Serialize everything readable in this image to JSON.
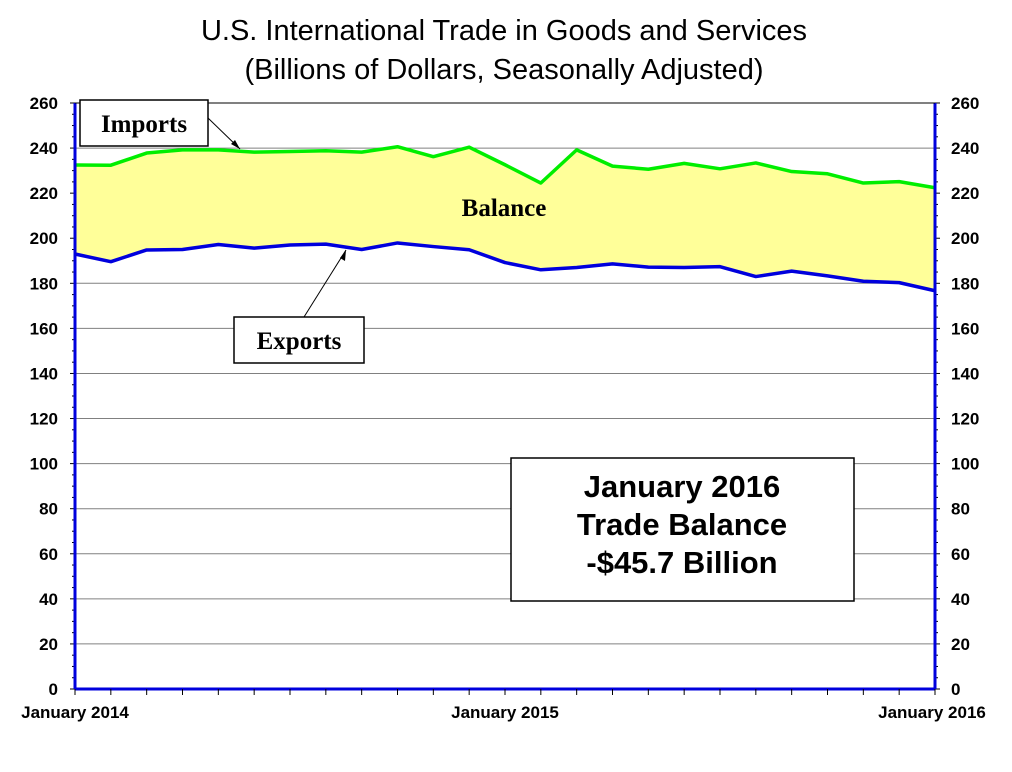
{
  "chart_data": {
    "type": "area",
    "title": "U.S. International Trade in Goods and Services",
    "subtitle": "(Billions of Dollars, Seasonally Adjusted)",
    "x_tick_labels": [
      "January 2014",
      "January 2015",
      "January 2016"
    ],
    "x": [
      "2014-01",
      "2014-02",
      "2014-03",
      "2014-04",
      "2014-05",
      "2014-06",
      "2014-07",
      "2014-08",
      "2014-09",
      "2014-10",
      "2014-11",
      "2014-12",
      "2015-01",
      "2015-02",
      "2015-03",
      "2015-04",
      "2015-05",
      "2015-06",
      "2015-07",
      "2015-08",
      "2015-09",
      "2015-10",
      "2015-11",
      "2015-12",
      "2016-01"
    ],
    "series": [
      {
        "name": "Imports",
        "color": "#00ee00",
        "values": [
          232.5,
          232.4,
          237.8,
          239.2,
          239.2,
          238.2,
          238.5,
          238.8,
          238.2,
          240.6,
          236.2,
          240.4,
          232.6,
          224.5,
          239.2,
          232.0,
          230.6,
          233.2,
          230.8,
          233.4,
          229.6,
          228.6,
          224.5,
          225.1,
          222.4
        ]
      },
      {
        "name": "Exports",
        "color": "#0000dd",
        "values": [
          193.0,
          189.6,
          194.8,
          195.0,
          197.2,
          195.6,
          197.0,
          197.4,
          195.0,
          197.9,
          196.3,
          194.9,
          189.2,
          186.0,
          187.0,
          188.6,
          187.2,
          187.0,
          187.4,
          183.0,
          185.4,
          183.3,
          180.9,
          180.3,
          176.7
        ]
      }
    ],
    "fill_between": {
      "label": "Balance",
      "color": "#ffff99"
    },
    "ylim": [
      0,
      260
    ],
    "y_ticks": [
      "0",
      "20",
      "40",
      "60",
      "80",
      "100",
      "120",
      "140",
      "160",
      "180",
      "200",
      "220",
      "240",
      "260"
    ],
    "grid": true,
    "annotations": {
      "imports_label": "Imports",
      "exports_label": "Exports",
      "balance_label": "Balance",
      "summary_line1": "January 2016",
      "summary_line2": "Trade Balance",
      "summary_line3": "-$45.7 Billion"
    }
  }
}
